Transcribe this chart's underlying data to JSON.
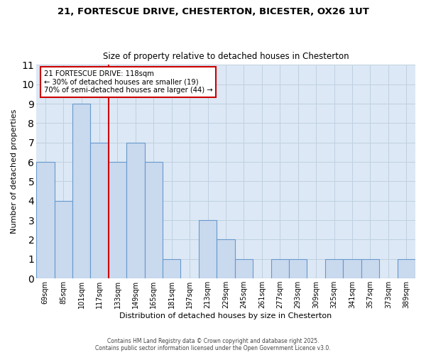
{
  "title1": "21, FORTESCUE DRIVE, CHESTERTON, BICESTER, OX26 1UT",
  "title2": "Size of property relative to detached houses in Chesterton",
  "xlabel": "Distribution of detached houses by size in Chesterton",
  "ylabel": "Number of detached properties",
  "categories": [
    "69sqm",
    "85sqm",
    "101sqm",
    "117sqm",
    "133sqm",
    "149sqm",
    "165sqm",
    "181sqm",
    "197sqm",
    "213sqm",
    "229sqm",
    "245sqm",
    "261sqm",
    "277sqm",
    "293sqm",
    "309sqm",
    "325sqm",
    "341sqm",
    "357sqm",
    "373sqm",
    "389sqm"
  ],
  "values": [
    6,
    4,
    9,
    7,
    6,
    7,
    6,
    1,
    0,
    3,
    2,
    1,
    0,
    1,
    1,
    0,
    1,
    1,
    1,
    0,
    1
  ],
  "bar_color": "#c9d9ee",
  "bar_edge_color": "#6699cc",
  "property_value_index": 3,
  "red_line_color": "#cc0000",
  "annotation_line1": "21 FORTESCUE DRIVE: 118sqm",
  "annotation_line2": "← 30% of detached houses are smaller (19)",
  "annotation_line3": "70% of semi-detached houses are larger (44) →",
  "annotation_box_edgecolor": "#cc0000",
  "annotation_bg_color": "#ffffff",
  "ylim": [
    0,
    11
  ],
  "yticks": [
    0,
    1,
    2,
    3,
    4,
    5,
    6,
    7,
    8,
    9,
    10,
    11
  ],
  "grid_color": "#c0d0e0",
  "plot_bg_color": "#dce8f5",
  "fig_bg_color": "#ffffff",
  "footer_line1": "Contains HM Land Registry data © Crown copyright and database right 2025.",
  "footer_line2": "Contains public sector information licensed under the Open Government Licence v3.0."
}
